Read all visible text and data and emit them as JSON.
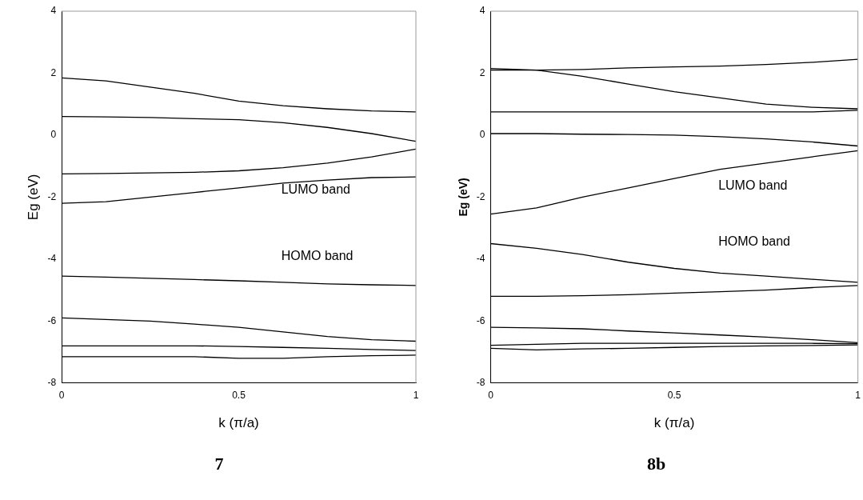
{
  "chart_data": [
    {
      "type": "line",
      "title": "7",
      "xlabel": "k (π/a)",
      "ylabel": "Eg (eV)",
      "x": [
        0,
        0.125,
        0.25,
        0.375,
        0.5,
        0.625,
        0.75,
        0.875,
        1
      ],
      "xlim": [
        0,
        1
      ],
      "xticks": [
        0,
        0.5,
        1
      ],
      "ylim": [
        -8,
        4
      ],
      "yticks": [
        -8,
        -6,
        -4,
        -2,
        0,
        2,
        4
      ],
      "annotations": [
        "LUMO band",
        "HOMO band"
      ],
      "series": [
        {
          "color": "#000000",
          "values": [
            1.85,
            1.75,
            1.55,
            1.35,
            1.1,
            0.95,
            0.85,
            0.78,
            0.75
          ]
        },
        {
          "color": "#000000",
          "values": [
            0.6,
            0.59,
            0.57,
            0.53,
            0.5,
            0.4,
            0.25,
            0.05,
            -0.2
          ]
        },
        {
          "color": "#000000",
          "values": [
            -1.25,
            -1.24,
            -1.22,
            -1.2,
            -1.15,
            -1.05,
            -0.9,
            -0.7,
            -0.45
          ]
        },
        {
          "color": "#000000",
          "values": [
            -2.2,
            -2.15,
            -2.0,
            -1.85,
            -1.7,
            -1.55,
            -1.45,
            -1.37,
            -1.35
          ]
        },
        {
          "color": "#000000",
          "values": [
            -4.55,
            -4.58,
            -4.62,
            -4.66,
            -4.7,
            -4.75,
            -4.8,
            -4.83,
            -4.85
          ]
        },
        {
          "color": "#000000",
          "values": [
            -5.9,
            -5.95,
            -6.0,
            -6.1,
            -6.2,
            -6.35,
            -6.5,
            -6.6,
            -6.65
          ]
        },
        {
          "color": "#000000",
          "values": [
            -6.8,
            -6.8,
            -6.8,
            -6.8,
            -6.82,
            -6.85,
            -6.88,
            -6.92,
            -6.95
          ]
        },
        {
          "color": "#000000",
          "values": [
            -7.15,
            -7.15,
            -7.15,
            -7.15,
            -7.2,
            -7.2,
            -7.15,
            -7.12,
            -7.1
          ]
        }
      ]
    },
    {
      "type": "line",
      "title": "8b",
      "xlabel": "k (π/a)",
      "ylabel": "Eg (eV)",
      "x": [
        0,
        0.125,
        0.25,
        0.375,
        0.5,
        0.625,
        0.75,
        0.875,
        1
      ],
      "xlim": [
        0,
        1
      ],
      "xticks": [
        0,
        0.5,
        1
      ],
      "ylim": [
        -8,
        4
      ],
      "yticks": [
        -8,
        -6,
        -4,
        -2,
        0,
        2,
        4
      ],
      "annotations": [
        "LUMO band",
        "HOMO band"
      ],
      "series": [
        {
          "color": "#000000",
          "values": [
            2.1,
            2.1,
            2.12,
            2.17,
            2.2,
            2.23,
            2.28,
            2.35,
            2.45
          ]
        },
        {
          "color": "#000000",
          "values": [
            2.15,
            2.1,
            1.9,
            1.65,
            1.4,
            1.2,
            1.0,
            0.9,
            0.85
          ]
        },
        {
          "color": "#000000",
          "values": [
            0.75,
            0.75,
            0.75,
            0.75,
            0.75,
            0.75,
            0.75,
            0.75,
            0.8
          ]
        },
        {
          "color": "#000000",
          "values": [
            0.05,
            0.05,
            0.03,
            0.02,
            0,
            -0.05,
            -0.12,
            -0.22,
            -0.35
          ]
        },
        {
          "color": "#000000",
          "values": [
            -2.55,
            -2.35,
            -2.0,
            -1.7,
            -1.4,
            -1.1,
            -0.9,
            -0.7,
            -0.5
          ]
        },
        {
          "color": "#000000",
          "values": [
            -3.5,
            -3.65,
            -3.85,
            -4.1,
            -4.3,
            -4.45,
            -4.55,
            -4.65,
            -4.75
          ]
        },
        {
          "color": "#000000",
          "values": [
            -5.2,
            -5.2,
            -5.18,
            -5.15,
            -5.1,
            -5.05,
            -5.0,
            -4.92,
            -4.85
          ]
        },
        {
          "color": "#000000",
          "values": [
            -6.2,
            -6.22,
            -6.25,
            -6.32,
            -6.38,
            -6.45,
            -6.52,
            -6.6,
            -6.7
          ]
        },
        {
          "color": "#000000",
          "values": [
            -6.78,
            -6.75,
            -6.72,
            -6.72,
            -6.72,
            -6.72,
            -6.72,
            -6.72,
            -6.73
          ]
        },
        {
          "color": "#000000",
          "values": [
            -6.88,
            -6.93,
            -6.9,
            -6.88,
            -6.85,
            -6.82,
            -6.8,
            -6.79,
            -6.77
          ]
        }
      ]
    }
  ]
}
